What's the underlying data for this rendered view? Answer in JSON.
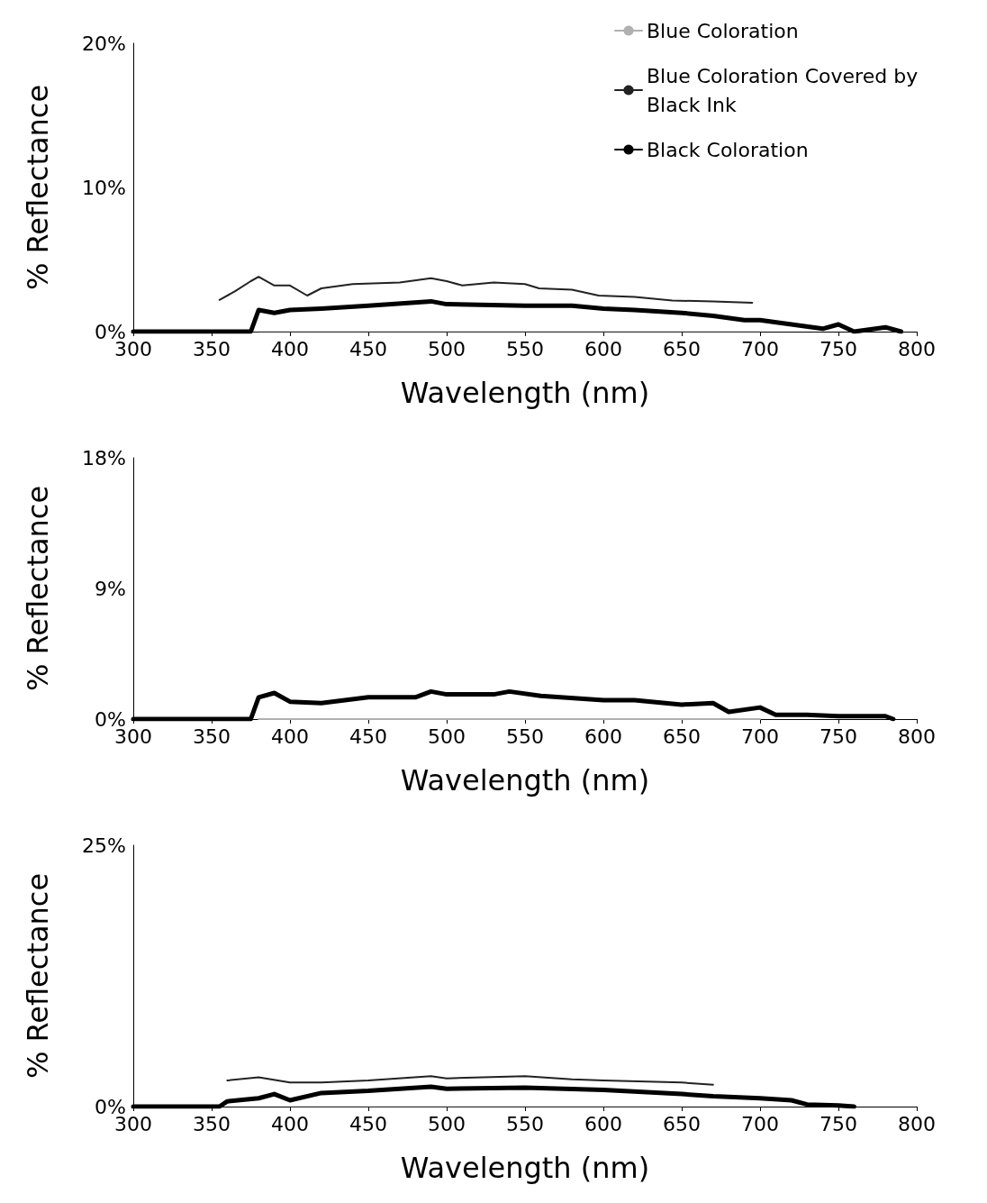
{
  "chart_data": [
    {
      "type": "line",
      "xlabel": "Wavelength (nm)",
      "ylabel": "% Reflectance",
      "xlim": [
        300,
        800
      ],
      "xticks": [
        300,
        350,
        400,
        450,
        500,
        550,
        600,
        650,
        700,
        750,
        800
      ],
      "ylim": [
        0,
        20
      ],
      "yticks": [
        {
          "value": 0,
          "label": "0%"
        },
        {
          "value": 10,
          "label": "10%"
        },
        {
          "value": 20,
          "label": "20%"
        }
      ],
      "legend": "top right",
      "grid": false,
      "series": [
        {
          "name": "Blue Coloration",
          "color": "#b0b0b0",
          "x": [
            380,
            450,
            500,
            550,
            600,
            650,
            700
          ],
          "values": [
            0,
            0,
            0,
            0,
            0,
            0,
            0
          ]
        },
        {
          "name": "Blue Coloration Covered by Black Ink",
          "color": "#222222",
          "x": [
            355,
            365,
            375,
            380,
            390,
            400,
            411,
            420,
            440,
            470,
            490,
            500,
            510,
            530,
            550,
            559,
            580,
            597,
            620,
            644,
            670,
            695
          ],
          "values": [
            2.2,
            2.8,
            3.5,
            3.8,
            3.2,
            3.2,
            2.5,
            3.0,
            3.3,
            3.4,
            3.7,
            3.5,
            3.2,
            3.4,
            3.3,
            3.0,
            2.9,
            2.5,
            2.4,
            2.15,
            2.1,
            2.0
          ]
        },
        {
          "name": "Black Coloration",
          "color": "#000000",
          "x": [
            300,
            375,
            380,
            390,
            400,
            420,
            450,
            490,
            500,
            550,
            580,
            600,
            620,
            650,
            670,
            690,
            700,
            720,
            740,
            750,
            760,
            780,
            790
          ],
          "values": [
            0,
            0,
            1.5,
            1.3,
            1.5,
            1.6,
            1.8,
            2.1,
            1.9,
            1.8,
            1.8,
            1.6,
            1.5,
            1.3,
            1.1,
            0.8,
            0.8,
            0.5,
            0.2,
            0.5,
            0,
            0.3,
            0
          ]
        }
      ]
    },
    {
      "type": "line",
      "xlabel": "Wavelength (nm)",
      "ylabel": "% Reflectance",
      "xlim": [
        300,
        800
      ],
      "xticks": [
        300,
        350,
        400,
        450,
        500,
        550,
        600,
        650,
        700,
        750,
        800
      ],
      "ylim": [
        0,
        18
      ],
      "yticks": [
        {
          "value": 0,
          "label": "0%"
        },
        {
          "value": 9,
          "label": "9%"
        },
        {
          "value": 18,
          "label": "18%"
        }
      ],
      "grid": false,
      "series": [
        {
          "color": "#b0b0b0",
          "x": [
            380,
            450,
            500,
            550,
            600,
            650,
            700
          ],
          "values": [
            0,
            0,
            0,
            0,
            0,
            0,
            0
          ]
        },
        {
          "color": "#000000",
          "x": [
            300,
            375,
            380,
            390,
            400,
            420,
            450,
            480,
            490,
            500,
            530,
            540,
            560,
            600,
            620,
            650,
            670,
            680,
            700,
            710,
            730,
            750,
            780,
            785
          ],
          "values": [
            0,
            0,
            1.5,
            1.8,
            1.2,
            1.1,
            1.5,
            1.5,
            1.9,
            1.7,
            1.7,
            1.9,
            1.6,
            1.3,
            1.3,
            1.0,
            1.1,
            0.5,
            0.8,
            0.3,
            0.3,
            0.2,
            0.2,
            0
          ]
        }
      ]
    },
    {
      "type": "line",
      "xlabel": "Wavelength (nm)",
      "ylabel": "% Reflectance",
      "xlim": [
        300,
        800
      ],
      "xticks": [
        300,
        350,
        400,
        450,
        500,
        550,
        600,
        650,
        700,
        750,
        800
      ],
      "ylim": [
        0,
        25
      ],
      "yticks": [
        {
          "value": 0,
          "label": "0%"
        },
        {
          "value": 25,
          "label": "25%"
        }
      ],
      "grid": false,
      "series": [
        {
          "color": "#b0b0b0",
          "x": [
            400,
            450,
            500,
            550,
            600,
            650
          ],
          "values": [
            0,
            0,
            0,
            0,
            0,
            0
          ]
        },
        {
          "color": "#222222",
          "x": [
            360,
            380,
            400,
            420,
            450,
            490,
            500,
            550,
            580,
            600,
            650,
            670
          ],
          "values": [
            2.5,
            2.8,
            2.3,
            2.3,
            2.5,
            2.9,
            2.7,
            2.9,
            2.6,
            2.5,
            2.3,
            2.1
          ]
        },
        {
          "color": "#000000",
          "x": [
            300,
            355,
            360,
            380,
            390,
            400,
            420,
            450,
            490,
            500,
            550,
            600,
            650,
            670,
            700,
            720,
            730,
            750,
            760
          ],
          "values": [
            0,
            0,
            0.5,
            0.8,
            1.2,
            0.6,
            1.3,
            1.5,
            1.9,
            1.7,
            1.8,
            1.6,
            1.2,
            1.0,
            0.8,
            0.6,
            0.2,
            0.1,
            0
          ]
        }
      ]
    }
  ]
}
